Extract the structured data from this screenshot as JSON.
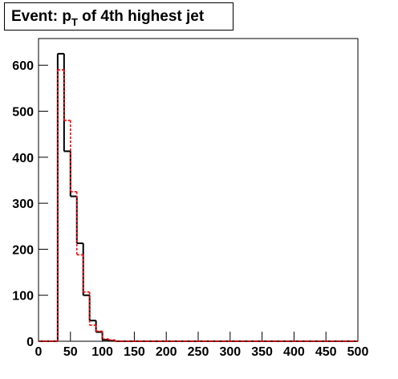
{
  "chart_data": {
    "type": "histogram",
    "title": "Event: p",
    "title_subscript": "T",
    "title_rest": " of 4th highest jet",
    "bins": [
      0,
      10,
      20,
      30,
      40,
      50,
      60,
      70,
      80,
      90,
      100,
      110,
      120,
      130,
      140,
      150,
      160,
      170,
      180,
      190,
      200,
      210,
      220,
      230,
      240,
      250,
      260,
      270,
      280,
      290,
      300,
      310,
      320,
      330,
      340,
      350,
      360,
      370,
      380,
      390,
      400,
      410,
      420,
      430,
      440,
      450,
      460,
      470,
      480,
      490,
      500
    ],
    "series": [
      {
        "color": "#000000",
        "style": "solid",
        "values": [
          0,
          0,
          0,
          625,
          413,
          315,
          213,
          100,
          45,
          20,
          3,
          1,
          0,
          0,
          0,
          0,
          0,
          0,
          0,
          0,
          0,
          0,
          0,
          0,
          0,
          0,
          0,
          0,
          0,
          0,
          0,
          0,
          0,
          0,
          0,
          0,
          0,
          0,
          0,
          0,
          0,
          0,
          0,
          0,
          0,
          0,
          0,
          0,
          0,
          0
        ]
      },
      {
        "color": "#ff0000",
        "style": "dashed",
        "values": [
          0,
          0,
          0,
          590,
          480,
          325,
          188,
          107,
          35,
          22,
          5,
          3,
          0,
          0,
          0,
          0,
          0,
          0,
          0,
          0,
          0,
          0,
          0,
          0,
          0,
          0,
          0,
          0,
          0,
          0,
          0,
          0,
          0,
          0,
          0,
          0,
          0,
          0,
          0,
          0,
          0,
          0,
          0,
          0,
          0,
          0,
          0,
          0,
          0,
          0
        ]
      }
    ],
    "xlim": [
      0,
      500
    ],
    "ylim": [
      0,
      658
    ],
    "xticks": [
      0,
      50,
      100,
      150,
      200,
      250,
      300,
      350,
      400,
      450,
      500
    ],
    "yticks": [
      0,
      100,
      200,
      300,
      400,
      500,
      600
    ]
  }
}
